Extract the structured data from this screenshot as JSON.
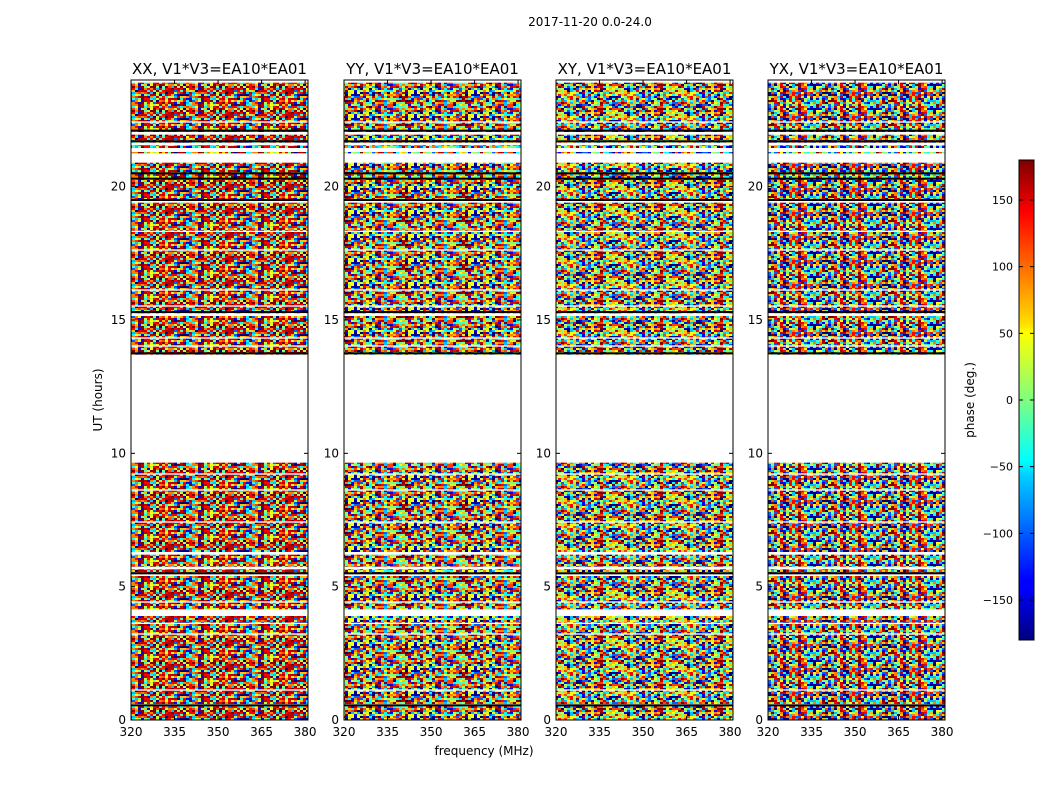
{
  "figure_title": "2017-11-20 0.0-24.0",
  "chart_data": {
    "type": "heatmap",
    "suptitle": "2017-11-20 0.0-24.0",
    "xlabel": "frequency (MHz)",
    "ylabel": "UT (hours)",
    "xlim": [
      320,
      381
    ],
    "ylim": [
      0,
      24
    ],
    "xticks": [
      320,
      335,
      350,
      365,
      380
    ],
    "yticks": [
      0,
      5,
      10,
      15,
      20
    ],
    "colorbar": {
      "label": "phase (deg.)",
      "range": [
        -180,
        180
      ],
      "ticks": [
        -150,
        -100,
        -50,
        0,
        50,
        100,
        150
      ],
      "colormap": "jet",
      "tick_text": [
        "−150",
        "−100",
        "−50",
        "0",
        "50",
        "100",
        "150"
      ]
    },
    "flagged_time_ranges_hours": [
      [
        9.65,
        13.7
      ],
      [
        21.3,
        20.9
      ],
      [
        5.65,
        5.4
      ],
      [
        4.15,
        3.9
      ]
    ],
    "panels": [
      {
        "title": "XX, V1*V3=EA10*EA01",
        "polarization": "XX",
        "baseline": "V1*V3=EA10*EA01"
      },
      {
        "title": "YY, V1*V3=EA10*EA01",
        "polarization": "YY",
        "baseline": "V1*V3=EA10*EA01"
      },
      {
        "title": "XY, V1*V3=EA10*EA01",
        "polarization": "XY",
        "baseline": "V1*V3=EA10*EA01"
      },
      {
        "title": "YX, V1*V3=EA10*EA01",
        "polarization": "YX",
        "baseline": "V1*V3=EA10*EA01"
      }
    ]
  }
}
